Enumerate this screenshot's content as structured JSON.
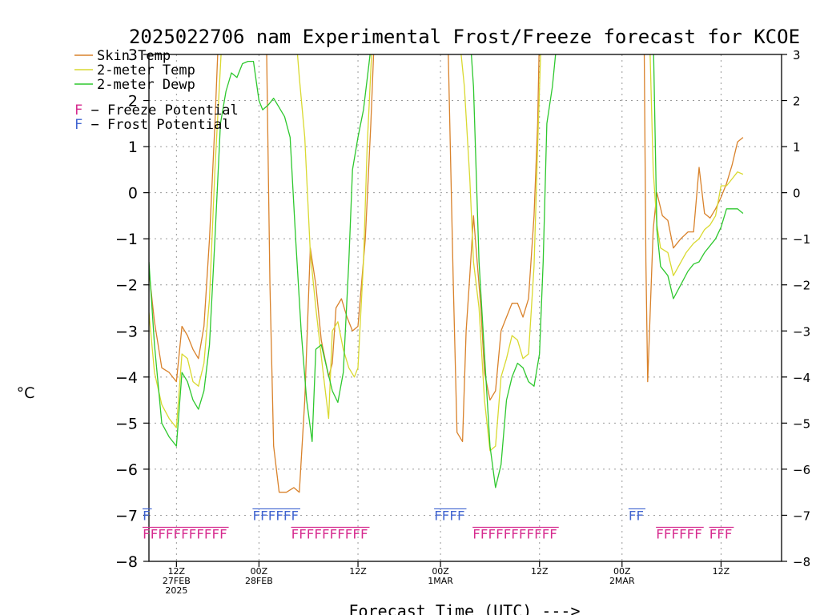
{
  "chart_data": {
    "type": "line",
    "title": "2025022706 nam Experimental Frost/Freeze forecast for KCOE",
    "xlabel": "Forecast Time (UTC) --->",
    "ylabel": "°C",
    "ylim": [
      -8,
      3
    ],
    "xlim": [
      -15,
      330
    ],
    "grid": true,
    "legend_position": "top-left",
    "yticks": [
      -8,
      -7,
      -6,
      -5,
      -4,
      -3,
      -2,
      -1,
      0,
      1,
      2,
      3
    ],
    "ytick_labels": [
      "−8",
      "−7",
      "−6",
      "−5",
      "−4",
      "−3",
      "−2",
      "−1",
      "0",
      "1",
      "2",
      "3"
    ],
    "xticks": [
      {
        "h": 0,
        "label": "12Z",
        "sub1": "27FEB",
        "sub2": "2025"
      },
      {
        "h": 45,
        "label": "00Z",
        "sub1": "28FEB",
        "sub2": ""
      },
      {
        "h": 99,
        "label": "12Z",
        "sub1": "",
        "sub2": ""
      },
      {
        "h": 144,
        "label": "00Z",
        "sub1": "1MAR",
        "sub2": ""
      },
      {
        "h": 198,
        "label": "12Z",
        "sub1": "",
        "sub2": ""
      },
      {
        "h": 243,
        "label": "00Z",
        "sub1": "2MAR",
        "sub2": ""
      },
      {
        "h": 297,
        "label": "12Z",
        "sub1": "",
        "sub2": ""
      }
    ],
    "series": [
      {
        "name": "Skin Temp",
        "color": "#d9822b",
        "points": [
          [
            -15,
            -1.7
          ],
          [
            -12,
            -2.8
          ],
          [
            -8,
            -3.8
          ],
          [
            -4,
            -3.9
          ],
          [
            0,
            -4.1
          ],
          [
            3,
            -2.9
          ],
          [
            6,
            -3.1
          ],
          [
            9,
            -3.4
          ],
          [
            12,
            -3.6
          ],
          [
            15,
            -2.9
          ],
          [
            18,
            -1
          ],
          [
            21,
            1.5
          ],
          [
            23,
            3.5
          ],
          [
            49,
            3.5
          ],
          [
            51,
            -2
          ],
          [
            53,
            -5.5
          ],
          [
            56,
            -6.5
          ],
          [
            60,
            -6.5
          ],
          [
            64,
            -6.4
          ],
          [
            67,
            -6.5
          ],
          [
            70,
            -4.5
          ],
          [
            73,
            -1.2
          ],
          [
            76,
            -2
          ],
          [
            79,
            -3.2
          ],
          [
            83,
            -4
          ],
          [
            85,
            -3.7
          ],
          [
            87,
            -2.5
          ],
          [
            90,
            -2.3
          ],
          [
            93,
            -2.7
          ],
          [
            96,
            -3
          ],
          [
            99,
            -2.9
          ],
          [
            103,
            -1
          ],
          [
            106,
            1.5
          ],
          [
            108,
            3.5
          ],
          [
            148,
            3.5
          ],
          [
            151,
            -2
          ],
          [
            153,
            -5.2
          ],
          [
            156,
            -5.4
          ],
          [
            158,
            -3
          ],
          [
            160,
            -1.8
          ],
          [
            162,
            -0.5
          ],
          [
            164,
            -1.5
          ],
          [
            166,
            -2.5
          ],
          [
            168,
            -3.9
          ],
          [
            171,
            -4.5
          ],
          [
            174,
            -4.3
          ],
          [
            177,
            -3
          ],
          [
            180,
            -2.7
          ],
          [
            183,
            -2.4
          ],
          [
            186,
            -2.4
          ],
          [
            189,
            -2.7
          ],
          [
            192,
            -2.3
          ],
          [
            195,
            -0.5
          ],
          [
            197,
            1.5
          ],
          [
            198,
            3.5
          ],
          [
            255,
            3.5
          ],
          [
            256,
            -1.5
          ],
          [
            257,
            -4.1
          ],
          [
            260,
            -0.8
          ],
          [
            262,
            0
          ],
          [
            265,
            -0.5
          ],
          [
            268,
            -0.6
          ],
          [
            271,
            -1.2
          ],
          [
            275,
            -1
          ],
          [
            279,
            -0.85
          ],
          [
            282,
            -0.85
          ],
          [
            285,
            0.55
          ],
          [
            288,
            -0.45
          ],
          [
            291,
            -0.55
          ],
          [
            294,
            -0.35
          ],
          [
            297,
            -0.1
          ],
          [
            300,
            0.2
          ],
          [
            303,
            0.6
          ],
          [
            306,
            1.1
          ],
          [
            309,
            1.2
          ]
        ]
      },
      {
        "name": "2-meter Temp",
        "color": "#d9d930",
        "points": [
          [
            -15,
            -2.6
          ],
          [
            -12,
            -3.9
          ],
          [
            -8,
            -4.6
          ],
          [
            -4,
            -4.9
          ],
          [
            0,
            -5.1
          ],
          [
            3,
            -3.5
          ],
          [
            6,
            -3.6
          ],
          [
            9,
            -4.1
          ],
          [
            12,
            -4.2
          ],
          [
            15,
            -3.7
          ],
          [
            18,
            -2.3
          ],
          [
            21,
            0.5
          ],
          [
            25,
            3.5
          ],
          [
            65,
            3.5
          ],
          [
            67,
            2.5
          ],
          [
            70,
            1.2
          ],
          [
            73,
            -1.3
          ],
          [
            76,
            -2.5
          ],
          [
            80,
            -3.9
          ],
          [
            83,
            -4.9
          ],
          [
            85,
            -3
          ],
          [
            88,
            -2.8
          ],
          [
            91,
            -3.4
          ],
          [
            94,
            -3.8
          ],
          [
            97,
            -4
          ],
          [
            99,
            -3.8
          ],
          [
            102,
            -1.5
          ],
          [
            104,
            1
          ],
          [
            107,
            3.5
          ],
          [
            154,
            3.5
          ],
          [
            157,
            2.3
          ],
          [
            160,
            0.3
          ],
          [
            162,
            -1.5
          ],
          [
            165,
            -2.5
          ],
          [
            168,
            -4.5
          ],
          [
            171,
            -5.6
          ],
          [
            174,
            -5.5
          ],
          [
            177,
            -4
          ],
          [
            180,
            -3.6
          ],
          [
            183,
            -3.1
          ],
          [
            186,
            -3.2
          ],
          [
            189,
            -3.6
          ],
          [
            192,
            -3.5
          ],
          [
            195,
            -1.6
          ],
          [
            197,
            1
          ],
          [
            199,
            3.5
          ],
          [
            258,
            3.5
          ],
          [
            260,
            0.5
          ],
          [
            262,
            -0.7
          ],
          [
            264,
            -1.2
          ],
          [
            268,
            -1.3
          ],
          [
            271,
            -1.8
          ],
          [
            278,
            -1.3
          ],
          [
            282,
            -1.1
          ],
          [
            285,
            -1
          ],
          [
            288,
            -0.8
          ],
          [
            291,
            -0.7
          ],
          [
            294,
            -0.5
          ],
          [
            297,
            0.15
          ],
          [
            300,
            0.15
          ],
          [
            303,
            0.3
          ],
          [
            306,
            0.45
          ],
          [
            309,
            0.4
          ]
        ]
      },
      {
        "name": "2-meter Dewp",
        "color": "#2ec82e",
        "points": [
          [
            -15,
            -1.5
          ],
          [
            -12,
            -3.3
          ],
          [
            -8,
            -5
          ],
          [
            -4,
            -5.3
          ],
          [
            0,
            -5.5
          ],
          [
            3,
            -3.9
          ],
          [
            6,
            -4.1
          ],
          [
            9,
            -4.5
          ],
          [
            12,
            -4.7
          ],
          [
            15,
            -4.3
          ],
          [
            18,
            -3.3
          ],
          [
            21,
            -1
          ],
          [
            24,
            1.5
          ],
          [
            27,
            2.2
          ],
          [
            30,
            2.6
          ],
          [
            33,
            2.5
          ],
          [
            36,
            2.8
          ],
          [
            39,
            2.85
          ],
          [
            42,
            2.85
          ],
          [
            45,
            2
          ],
          [
            47,
            1.8
          ],
          [
            50,
            1.9
          ],
          [
            53,
            2.05
          ],
          [
            56,
            1.85
          ],
          [
            59,
            1.65
          ],
          [
            62,
            1.2
          ],
          [
            65,
            -1
          ],
          [
            68,
            -3
          ],
          [
            71,
            -4.5
          ],
          [
            74,
            -5.4
          ],
          [
            76,
            -3.4
          ],
          [
            79,
            -3.3
          ],
          [
            82,
            -3.8
          ],
          [
            85,
            -4.3
          ],
          [
            88,
            -4.55
          ],
          [
            91,
            -3.9
          ],
          [
            94,
            -1.5
          ],
          [
            96,
            0.5
          ],
          [
            99,
            1.2
          ],
          [
            102,
            1.8
          ],
          [
            105,
            2.8
          ],
          [
            107,
            3.5
          ],
          [
            160,
            3.5
          ],
          [
            162,
            2.3
          ],
          [
            165,
            -1.5
          ],
          [
            168,
            -3.5
          ],
          [
            171,
            -5.5
          ],
          [
            174,
            -6.4
          ],
          [
            177,
            -5.9
          ],
          [
            180,
            -4.5
          ],
          [
            183,
            -4
          ],
          [
            186,
            -3.7
          ],
          [
            189,
            -3.8
          ],
          [
            192,
            -4.1
          ],
          [
            195,
            -4.2
          ],
          [
            198,
            -3.5
          ],
          [
            200,
            -1.5
          ],
          [
            202,
            1.5
          ],
          [
            205,
            2.3
          ],
          [
            208,
            3.5
          ],
          [
            260,
            3.5
          ],
          [
            262,
            -0.8
          ],
          [
            264,
            -1.6
          ],
          [
            268,
            -1.8
          ],
          [
            271,
            -2.3
          ],
          [
            275,
            -2
          ],
          [
            279,
            -1.7
          ],
          [
            282,
            -1.55
          ],
          [
            285,
            -1.5
          ],
          [
            288,
            -1.3
          ],
          [
            291,
            -1.15
          ],
          [
            294,
            -1
          ],
          [
            297,
            -0.75
          ],
          [
            300,
            -0.35
          ],
          [
            303,
            -0.35
          ],
          [
            306,
            -0.35
          ],
          [
            309,
            -0.45
          ]
        ]
      }
    ],
    "freeze_potential": {
      "name": "F − Freeze Potential",
      "color": "#d62a8e",
      "y": -7.4,
      "groups": [
        {
          "text": "FFFFFFFFFFF",
          "h_start": -15
        },
        {
          "text": "FFFFFFFFFF",
          "h_start": 66
        },
        {
          "text": "FFFFFFFFFFF",
          "h_start": 165
        },
        {
          "text": "FFFFFF",
          "h_start": 265
        },
        {
          "text": "FFF",
          "h_start": 294
        }
      ]
    },
    "frost_potential": {
      "name": "F − Frost Potential",
      "color": "#3f63d0",
      "y": -7,
      "groups": [
        {
          "text": "F",
          "h_start": -15
        },
        {
          "text": "FFFFFF",
          "h_start": 45
        },
        {
          "text": "FFFF",
          "h_start": 144
        },
        {
          "text": "FF",
          "h_start": 250
        }
      ]
    },
    "legend": [
      {
        "name": "Skin Temp",
        "color": "#d9822b"
      },
      {
        "name": "2-meter Temp",
        "color": "#d9d930"
      },
      {
        "name": "2-meter Dewp",
        "color": "#2ec82e"
      }
    ]
  }
}
